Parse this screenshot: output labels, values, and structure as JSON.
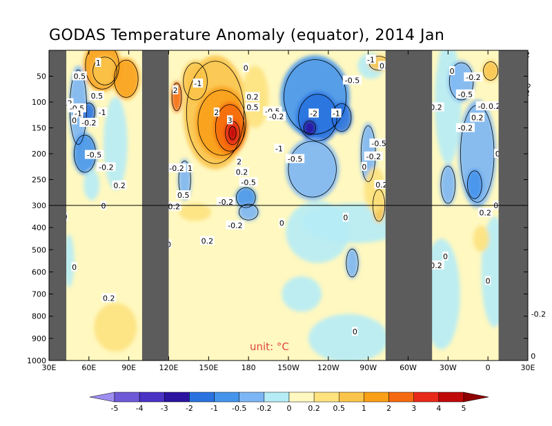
{
  "chart_data": {
    "type": "heatmap",
    "title": "GODAS Temperature Anomaly (equator), 2014 Jan",
    "unit_label": "unit: °C",
    "x_axis": {
      "range": [
        30,
        390
      ],
      "tick_values": [
        30,
        60,
        90,
        120,
        150,
        180,
        210,
        240,
        270,
        300,
        330,
        360,
        390
      ],
      "tick_labels": [
        "30E",
        "60E",
        "90E",
        "120E",
        "150E",
        "180",
        "150W",
        "120W",
        "90W",
        "60W",
        "30W",
        "0",
        "30E"
      ]
    },
    "y_axis": {
      "range": [
        0,
        1000
      ],
      "inverted": true,
      "scale": "stretched above 300 m",
      "tick_values": [
        50,
        100,
        150,
        200,
        250,
        300,
        400,
        500,
        600,
        700,
        800,
        900,
        1000
      ],
      "tick_labels": [
        "50",
        "100",
        "150",
        "200",
        "250",
        "300",
        "400",
        "500",
        "600",
        "700",
        "800",
        "900",
        "1000"
      ],
      "reference_line": 300
    },
    "land_masks": [
      {
        "from": 30,
        "to": 43
      },
      {
        "from": 100,
        "to": 120
      },
      {
        "from": 283,
        "to": 318
      },
      {
        "from": 368,
        "to": 390
      }
    ],
    "colorbar": {
      "levels": [
        "-5",
        "-4",
        "-3",
        "-2",
        "-1",
        "-0.5",
        "-0.2",
        "0",
        "0.2",
        "0.5",
        "1",
        "2",
        "3",
        "4",
        "5"
      ],
      "colors": [
        "#9e8ef0",
        "#6e5ad8",
        "#4a32c4",
        "#2c14a0",
        "#2a72e0",
        "#4494ec",
        "#7cb6f4",
        "#b6ecf6",
        "#fff8c0",
        "#fde27e",
        "#fbc44a",
        "#f9a018",
        "#f56a10",
        "#e82a1a",
        "#c00a0a",
        "#8e0000"
      ]
    },
    "contour_labels": [
      {
        "text": "1",
        "x": 67,
        "y": 24
      },
      {
        "text": "0.5",
        "x": 53,
        "y": 50
      },
      {
        "text": "0.5",
        "x": 66,
        "y": 88
      },
      {
        "text": "0.2",
        "x": 43,
        "y": 102
      },
      {
        "text": "-0.5",
        "x": 51,
        "y": 112
      },
      {
        "text": "-1",
        "x": 52,
        "y": 122
      },
      {
        "text": "0",
        "x": 49,
        "y": 135
      },
      {
        "text": "-1",
        "x": 70,
        "y": 120
      },
      {
        "text": "-0.2",
        "x": 60,
        "y": 140
      },
      {
        "text": "-0.5",
        "x": 64,
        "y": 202
      },
      {
        "text": "-0.2",
        "x": 73,
        "y": 226
      },
      {
        "text": "0.2",
        "x": 83,
        "y": 261
      },
      {
        "text": "0",
        "x": 71,
        "y": 301
      },
      {
        "text": "0",
        "x": 42,
        "y": 352
      },
      {
        "text": "0",
        "x": 49,
        "y": 578
      },
      {
        "text": "0.2",
        "x": 75,
        "y": 718
      },
      {
        "text": "2",
        "x": 125,
        "y": 77
      },
      {
        "text": "-1",
        "x": 142,
        "y": 64
      },
      {
        "text": "0",
        "x": 178,
        "y": 34
      },
      {
        "text": "0.2",
        "x": 183,
        "y": 90
      },
      {
        "text": "0.5",
        "x": 183,
        "y": 110
      },
      {
        "text": "2",
        "x": 156,
        "y": 120
      },
      {
        "text": "3",
        "x": 166,
        "y": 135
      },
      {
        "text": "-0.5",
        "x": 198,
        "y": 118
      },
      {
        "text": "-0.2",
        "x": 201,
        "y": 128
      },
      {
        "text": "2",
        "x": 173,
        "y": 215
      },
      {
        "text": "0.2",
        "x": 175,
        "y": 235
      },
      {
        "text": "-0.5",
        "x": 180,
        "y": 255
      },
      {
        "text": "-0.2",
        "x": 126,
        "y": 228
      },
      {
        "text": "1",
        "x": 136,
        "y": 228
      },
      {
        "text": "0.5",
        "x": 131,
        "y": 280
      },
      {
        "text": "0.2",
        "x": 124,
        "y": 305
      },
      {
        "text": "-0.2",
        "x": 163,
        "y": 293
      },
      {
        "text": "-0.2",
        "x": 170,
        "y": 390
      },
      {
        "text": "0.2",
        "x": 149,
        "y": 460
      },
      {
        "text": "0",
        "x": 120,
        "y": 475
      },
      {
        "text": "0",
        "x": 205,
        "y": 380
      },
      {
        "text": "-2",
        "x": 229,
        "y": 122
      },
      {
        "text": "-1",
        "x": 246,
        "y": 122
      },
      {
        "text": "-0.5",
        "x": 258,
        "y": 58
      },
      {
        "text": "-1",
        "x": 272,
        "y": 18
      },
      {
        "text": "0.1",
        "x": 283,
        "y": 30
      },
      {
        "text": "-1",
        "x": 292,
        "y": 30
      },
      {
        "text": "-0.2",
        "x": 301,
        "y": 40
      },
      {
        "text": "-0.2",
        "x": 301,
        "y": 52
      },
      {
        "text": "-1",
        "x": 203,
        "y": 190
      },
      {
        "text": "-0.5",
        "x": 215,
        "y": 210
      },
      {
        "text": "-0.5",
        "x": 278,
        "y": 180
      },
      {
        "text": "-0.2",
        "x": 274,
        "y": 205
      },
      {
        "text": "0.2",
        "x": 280,
        "y": 260
      },
      {
        "text": "0",
        "x": 267,
        "y": 225
      },
      {
        "text": "0",
        "x": 253,
        "y": 355
      },
      {
        "text": "0.2",
        "x": 297,
        "y": 547
      },
      {
        "text": "0",
        "x": 260,
        "y": 870
      },
      {
        "text": "0.2",
        "x": 387,
        "y": 8
      },
      {
        "text": "-0.2",
        "x": 387,
        "y": 70
      },
      {
        "text": "0.2",
        "x": 387,
        "y": 82
      },
      {
        "text": "-0.2",
        "x": 349,
        "y": 52
      },
      {
        "text": "-0.5",
        "x": 343,
        "y": 85
      },
      {
        "text": "-0.2",
        "x": 320,
        "y": 110
      },
      {
        "text": "-0.2",
        "x": 358,
        "y": 108
      },
      {
        "text": "0.2",
        "x": 352,
        "y": 130
      },
      {
        "text": "0.2",
        "x": 365,
        "y": 108
      },
      {
        "text": "-0.2",
        "x": 343,
        "y": 150
      },
      {
        "text": "0.2",
        "x": 370,
        "y": 200
      },
      {
        "text": "0.2",
        "x": 358,
        "y": 333
      },
      {
        "text": "0",
        "x": 366,
        "y": 300
      },
      {
        "text": "0",
        "x": 328,
        "y": 530
      },
      {
        "text": "-0.2",
        "x": 320,
        "y": 570
      },
      {
        "text": "0",
        "x": 360,
        "y": 640
      },
      {
        "text": "-0.2",
        "x": 398,
        "y": 790
      },
      {
        "text": "0",
        "x": 394,
        "y": 980
      },
      {
        "text": "0",
        "x": 333,
        "y": 40
      }
    ]
  }
}
